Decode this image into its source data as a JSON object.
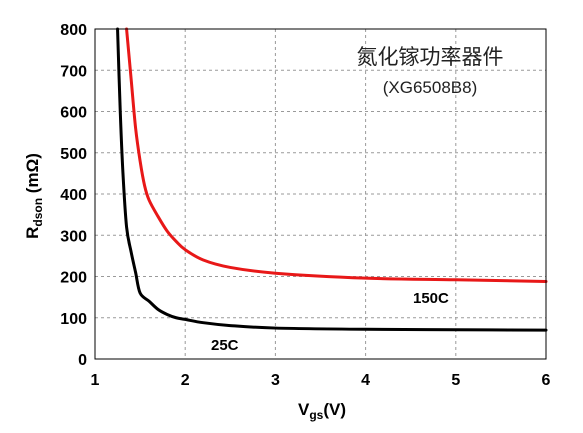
{
  "chart_data": {
    "type": "line",
    "title": "氮化镓功率器件",
    "subtitle": "(XG6508B8)",
    "xlabel": {
      "main": "V",
      "sub": "gs",
      "suffix": "(V)"
    },
    "ylabel": {
      "main": "R",
      "sub": "dson",
      "suffix": " (mΩ)"
    },
    "xlim": [
      1,
      6
    ],
    "ylim": [
      0,
      800
    ],
    "xticks": [
      "1",
      "2",
      "3",
      "4",
      "5",
      "6"
    ],
    "yticks": [
      "0",
      "100",
      "200",
      "300",
      "400",
      "500",
      "600",
      "700",
      "800"
    ],
    "grid": true,
    "series": [
      {
        "name": "25C",
        "color": "#000000",
        "points": [
          [
            1.25,
            800
          ],
          [
            1.28,
            600
          ],
          [
            1.31,
            450
          ],
          [
            1.35,
            320
          ],
          [
            1.4,
            260
          ],
          [
            1.45,
            210
          ],
          [
            1.5,
            160
          ],
          [
            1.6,
            140
          ],
          [
            1.7,
            120
          ],
          [
            1.8,
            108
          ],
          [
            1.9,
            100
          ],
          [
            2.0,
            96
          ],
          [
            2.2,
            88
          ],
          [
            2.5,
            81
          ],
          [
            3.0,
            75
          ],
          [
            4.0,
            72
          ],
          [
            5.0,
            71
          ],
          [
            6.0,
            70
          ]
        ]
      },
      {
        "name": "150C",
        "color": "#e81818",
        "points": [
          [
            1.35,
            800
          ],
          [
            1.4,
            680
          ],
          [
            1.45,
            560
          ],
          [
            1.5,
            480
          ],
          [
            1.55,
            420
          ],
          [
            1.6,
            385
          ],
          [
            1.7,
            345
          ],
          [
            1.8,
            310
          ],
          [
            1.9,
            285
          ],
          [
            2.0,
            265
          ],
          [
            2.2,
            240
          ],
          [
            2.5,
            222
          ],
          [
            3.0,
            208
          ],
          [
            4.0,
            196
          ],
          [
            5.0,
            192
          ],
          [
            6.0,
            188
          ]
        ]
      }
    ]
  }
}
